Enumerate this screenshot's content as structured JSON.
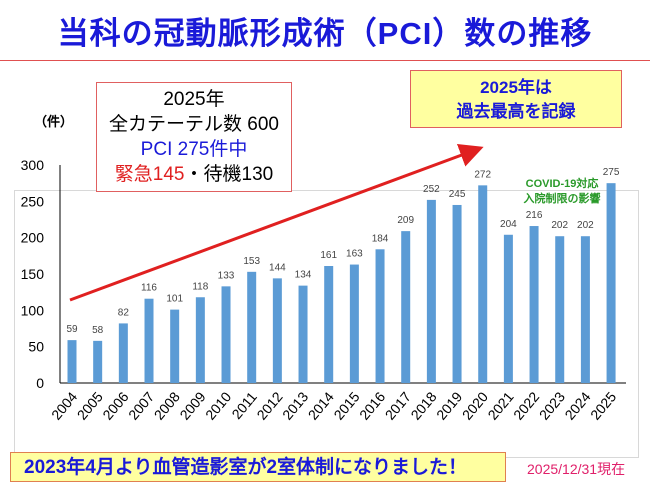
{
  "title": "当科の冠動脈形成術（PCI）数の推移",
  "unit_label": "（件）",
  "info_box": {
    "line1": "2025年",
    "line2": "全カテーテル数 600",
    "line3": "PCI 275件中",
    "emergency": "緊急145",
    "separator": "・",
    "elective": "待機130"
  },
  "record_box": {
    "line1": "2025年は",
    "line2": "過去最高を記録"
  },
  "covid_note": {
    "line1": "COVID-19対応",
    "line2": "入院制限の影響"
  },
  "bottom_note": "2023年4月より血管造影室が2室体制になりました！",
  "as_of": "2025/12/31現在",
  "colors": {
    "bar": "#5b9bd5",
    "title": "#1a1ad8",
    "arrow": "#e02020",
    "covid_note": "#2a9a2a",
    "emergency": "#e02020",
    "as_of": "#e0206a"
  },
  "chart_data": {
    "type": "bar",
    "categories": [
      "2004",
      "2005",
      "2006",
      "2007",
      "2008",
      "2009",
      "2010",
      "2011",
      "2012",
      "2013",
      "2014",
      "2015",
      "2016",
      "2017",
      "2018",
      "2019",
      "2020",
      "2021",
      "2022",
      "2023",
      "2024",
      "2025"
    ],
    "values": [
      59,
      58,
      82,
      116,
      101,
      118,
      133,
      153,
      144,
      134,
      161,
      163,
      184,
      209,
      252,
      245,
      272,
      204,
      216,
      202,
      202,
      275
    ],
    "ylim": [
      0,
      300
    ],
    "yticks": [
      0,
      50,
      100,
      150,
      200,
      250,
      300
    ],
    "grid": false,
    "trend_arrow": "upward"
  }
}
